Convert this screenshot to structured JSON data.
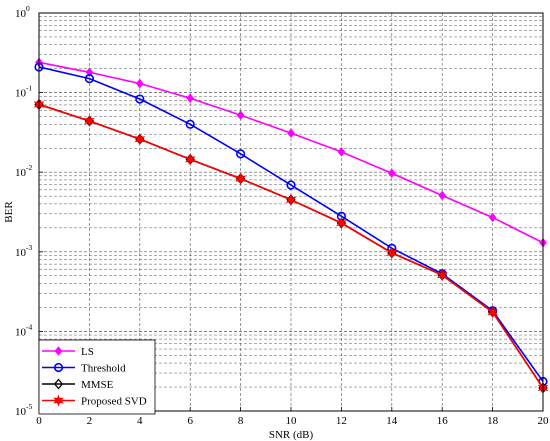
{
  "chart_data": {
    "type": "line",
    "title": "",
    "xlabel": "SNR (dB)",
    "ylabel": "BER",
    "x": [
      0,
      2,
      4,
      6,
      8,
      10,
      12,
      14,
      16,
      18,
      20
    ],
    "xlim": [
      0,
      20
    ],
    "xticks": [
      0,
      2,
      4,
      6,
      8,
      10,
      12,
      14,
      16,
      18,
      20
    ],
    "yscale": "log",
    "ylim": [
      1e-05,
      1
    ],
    "yticks": [
      {
        "base": "10",
        "exp": "0",
        "value": 1
      },
      {
        "base": "10",
        "exp": "-1",
        "value": 0.1
      },
      {
        "base": "10",
        "exp": "-2",
        "value": 0.01
      },
      {
        "base": "10",
        "exp": "-3",
        "value": 0.001
      },
      {
        "base": "10",
        "exp": "-4",
        "value": 0.0001
      },
      {
        "base": "10",
        "exp": "-5",
        "value": 1e-05
      }
    ],
    "grid": true,
    "legend_position": "bottom-left",
    "series": [
      {
        "name": "LS",
        "color": "#ff00ff",
        "marker": "diamond-filled",
        "values": [
          0.24,
          0.18,
          0.13,
          0.085,
          0.052,
          0.031,
          0.018,
          0.0097,
          0.0051,
          0.0027,
          0.0013
        ]
      },
      {
        "name": "Threshold",
        "color": "#0000ff",
        "marker": "circle-open",
        "values": [
          0.21,
          0.15,
          0.083,
          0.04,
          0.017,
          0.0069,
          0.0028,
          0.00111,
          0.00053,
          0.000182,
          2.35e-05
        ]
      },
      {
        "name": "MMSE",
        "color": "#000000",
        "marker": "diamond-open",
        "values": [
          0.071,
          0.044,
          0.026,
          0.0145,
          0.0083,
          0.0045,
          0.0023,
          0.00097,
          0.00051,
          0.000175,
          1.95e-05
        ]
      },
      {
        "name": "Proposed SVD",
        "color": "#ff0000",
        "marker": "star-filled",
        "values": [
          0.071,
          0.044,
          0.026,
          0.0145,
          0.0083,
          0.0045,
          0.0023,
          0.00097,
          0.00051,
          0.000175,
          1.95e-05
        ]
      }
    ]
  }
}
